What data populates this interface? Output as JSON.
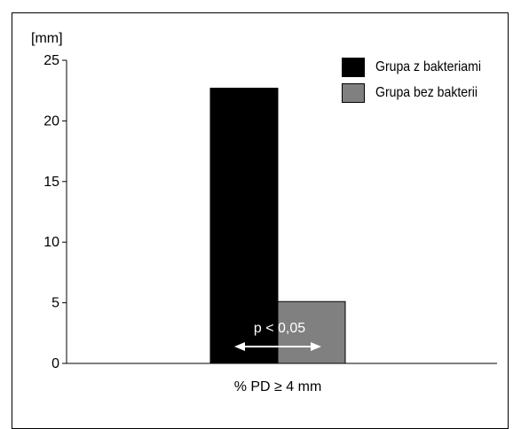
{
  "chart_data": {
    "type": "bar",
    "ylabel": "[mm]",
    "categories": [
      "% PD ≥ 4 mm"
    ],
    "ylim": [
      0,
      25
    ],
    "yticks": [
      0,
      5,
      10,
      15,
      20,
      25
    ],
    "series": [
      {
        "name": "Grupa z bakteriami",
        "values": [
          22.7
        ],
        "color": "#000000"
      },
      {
        "name": "Grupa bez bakterii",
        "values": [
          5.1
        ],
        "color": "#808080"
      }
    ],
    "annotation": "p < 0,05",
    "grid": false,
    "legend_position": "top-right"
  }
}
